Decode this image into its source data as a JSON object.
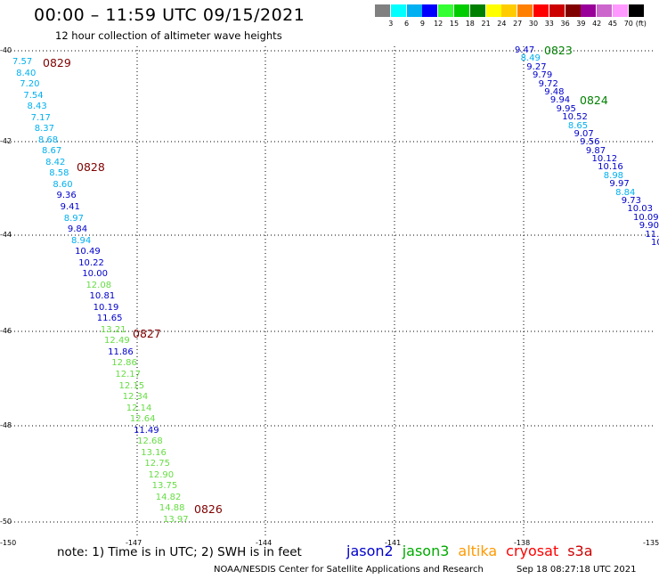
{
  "header": {
    "title": "00:00 – 11:59 UTC 09/15/2021",
    "subtitle": "12 hour collection of altimeter wave heights"
  },
  "colorbar": {
    "labels": [
      "3",
      "6",
      "9",
      "12",
      "15",
      "18",
      "21",
      "24",
      "27",
      "30",
      "33",
      "36",
      "39",
      "42",
      "45",
      "70"
    ],
    "unit": "(ft)",
    "colors": [
      "#808080",
      "#00ffff",
      "#00b0f0",
      "#0000ff",
      "#33ff33",
      "#00cc00",
      "#008000",
      "#ffff00",
      "#ffcc00",
      "#ff8000",
      "#ff0000",
      "#cc0000",
      "#800000",
      "#990099",
      "#cc66cc",
      "#ff99ff",
      "#000000"
    ]
  },
  "map": {
    "lat_labels": [
      "-40",
      "-42",
      "-44",
      "-46",
      "-48",
      "-50"
    ],
    "lon_labels": [
      "-150",
      "-147",
      "-144",
      "-141",
      "-138",
      "-135"
    ],
    "track_west": [
      {
        "v": "7.57",
        "c": "#00b0f0"
      },
      {
        "v": "8.40",
        "c": "#00b0f0"
      },
      {
        "v": "7.20",
        "c": "#00b0f0"
      },
      {
        "v": "7.54",
        "c": "#00b0f0"
      },
      {
        "v": "8.43",
        "c": "#00b0f0"
      },
      {
        "v": "7.17",
        "c": "#00b0f0"
      },
      {
        "v": "8.37",
        "c": "#00b0f0"
      },
      {
        "v": "8.68",
        "c": "#00b0f0"
      },
      {
        "v": "8.67",
        "c": "#00b0f0"
      },
      {
        "v": "8.42",
        "c": "#00b0f0"
      },
      {
        "v": "8.58",
        "c": "#00b0f0"
      },
      {
        "v": "8.60",
        "c": "#00b0f0"
      },
      {
        "v": "9.36",
        "c": "#0000cc"
      },
      {
        "v": "9.41",
        "c": "#0000cc"
      },
      {
        "v": "8.97",
        "c": "#00b0f0"
      },
      {
        "v": "9.84",
        "c": "#0000cc"
      },
      {
        "v": "8.94",
        "c": "#00b0f0"
      },
      {
        "v": "10.49",
        "c": "#0000cc"
      },
      {
        "v": "10.22",
        "c": "#0000cc"
      },
      {
        "v": "10.00",
        "c": "#0000cc"
      },
      {
        "v": "12.08",
        "c": "#66dd44"
      },
      {
        "v": "10.81",
        "c": "#0000cc"
      },
      {
        "v": "10.19",
        "c": "#0000cc"
      },
      {
        "v": "11.65",
        "c": "#0000cc"
      },
      {
        "v": "13.21",
        "c": "#66dd44"
      },
      {
        "v": "12.49",
        "c": "#66dd44"
      },
      {
        "v": "11.86",
        "c": "#0000cc"
      },
      {
        "v": "12.86",
        "c": "#66dd44"
      },
      {
        "v": "12.17",
        "c": "#66dd44"
      },
      {
        "v": "12.15",
        "c": "#66dd44"
      },
      {
        "v": "12.34",
        "c": "#66dd44"
      },
      {
        "v": "12.14",
        "c": "#66dd44"
      },
      {
        "v": "12.64",
        "c": "#66dd44"
      },
      {
        "v": "11.49",
        "c": "#0000cc"
      },
      {
        "v": "12.68",
        "c": "#66dd44"
      },
      {
        "v": "13.16",
        "c": "#66dd44"
      },
      {
        "v": "12.75",
        "c": "#66dd44"
      },
      {
        "v": "12.90",
        "c": "#66dd44"
      },
      {
        "v": "13.75",
        "c": "#66dd44"
      },
      {
        "v": "14.82",
        "c": "#66dd44"
      },
      {
        "v": "14.88",
        "c": "#66dd44"
      },
      {
        "v": "13.97",
        "c": "#66dd44"
      }
    ],
    "track_east": [
      {
        "v": "9.47",
        "c": "#0000cc"
      },
      {
        "v": "8.49",
        "c": "#00b0f0"
      },
      {
        "v": "9.27",
        "c": "#0000cc"
      },
      {
        "v": "9.79",
        "c": "#0000cc"
      },
      {
        "v": "9.72",
        "c": "#0000cc"
      },
      {
        "v": "9.48",
        "c": "#0000cc"
      },
      {
        "v": "9.94",
        "c": "#0000cc"
      },
      {
        "v": "9.95",
        "c": "#0000cc"
      },
      {
        "v": "10.52",
        "c": "#0000cc"
      },
      {
        "v": "8.65",
        "c": "#00b0f0"
      },
      {
        "v": "9.07",
        "c": "#0000cc"
      },
      {
        "v": "9.56",
        "c": "#0000cc"
      },
      {
        "v": "9.87",
        "c": "#0000cc"
      },
      {
        "v": "10.12",
        "c": "#0000cc"
      },
      {
        "v": "10.16",
        "c": "#0000cc"
      },
      {
        "v": "8.98",
        "c": "#00b0f0"
      },
      {
        "v": "9.97",
        "c": "#0000cc"
      },
      {
        "v": "8.84",
        "c": "#00b0f0"
      },
      {
        "v": "9.73",
        "c": "#0000cc"
      },
      {
        "v": "10.03",
        "c": "#0000cc"
      },
      {
        "v": "10.09",
        "c": "#0000cc"
      },
      {
        "v": "9.90",
        "c": "#0000cc"
      },
      {
        "v": "11.",
        "c": "#0000cc"
      },
      {
        "v": "10",
        "c": "#0000cc"
      }
    ],
    "time_labels": [
      {
        "v": "0829",
        "c": "#800000"
      },
      {
        "v": "0828",
        "c": "#800000"
      },
      {
        "v": "0827",
        "c": "#800000"
      },
      {
        "v": "0826",
        "c": "#800000"
      },
      {
        "v": "0823",
        "c": "#008000"
      },
      {
        "v": "0824",
        "c": "#008000"
      }
    ]
  },
  "note": "note: 1) Time is in UTC; 2) SWH is in feet",
  "legend": [
    {
      "name": "jason2",
      "color": "#0000cc"
    },
    {
      "name": "jason3",
      "color": "#00aa00"
    },
    {
      "name": "altika",
      "color": "#ff9900"
    },
    {
      "name": "cryosat",
      "color": "#ff0000"
    },
    {
      "name": "s3a",
      "color": "#cc0000"
    }
  ],
  "footer": "NOAA/NESDIS Center for Satellite Applications and Research",
  "timestamp": "Sep 18 08:27:18 UTC 2021"
}
